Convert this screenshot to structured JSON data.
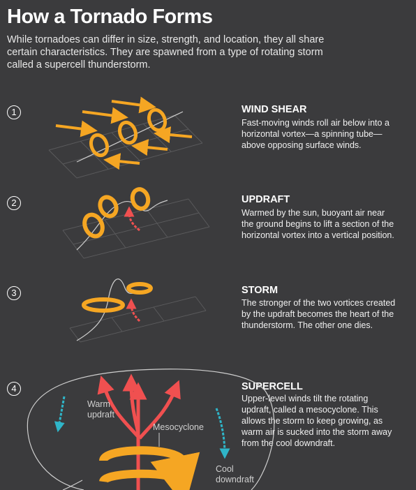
{
  "header": {
    "title": "How a Tornado Forms",
    "intro": "While tornadoes can differ in size, strength, and location, they all share certain characteristics. They are spawned from a type of rotating storm called a supercell thunderstorm."
  },
  "steps": [
    {
      "number": "1",
      "title": "WIND SHEAR",
      "text": "Fast-moving winds roll air below into a horizontal vortex—a spinning tube—above opposing surface winds."
    },
    {
      "number": "2",
      "title": "UPDRAFT",
      "text": "Warmed by the sun, buoyant air near the ground begins to lift a section of the horizontal vortex into a vertical position."
    },
    {
      "number": "3",
      "title": "STORM",
      "text": "The stronger of the two vortices created by the updraft becomes the heart of the thunderstorm. The other one dies."
    },
    {
      "number": "4",
      "title": "SUPERCELL",
      "text": "Upper-level winds tilt the rotating updraft, called a mesocyclone. This allows the storm to keep growing, as warm air is sucked into the storm away from the cool downdraft."
    }
  ],
  "labels": {
    "warm_updraft_1": "Warm",
    "warm_updraft_2": "updraft",
    "mesocyclone": "Mesocyclone",
    "cool_downdraft_1": "Cool",
    "cool_downdraft_2": "downdraft"
  },
  "colors": {
    "background": "#3b3b3d",
    "vortex_orange": "#f5a623",
    "warm_red": "#f05050",
    "cool_cyan": "#2fb5c8",
    "grid": "#5a5a5c"
  }
}
